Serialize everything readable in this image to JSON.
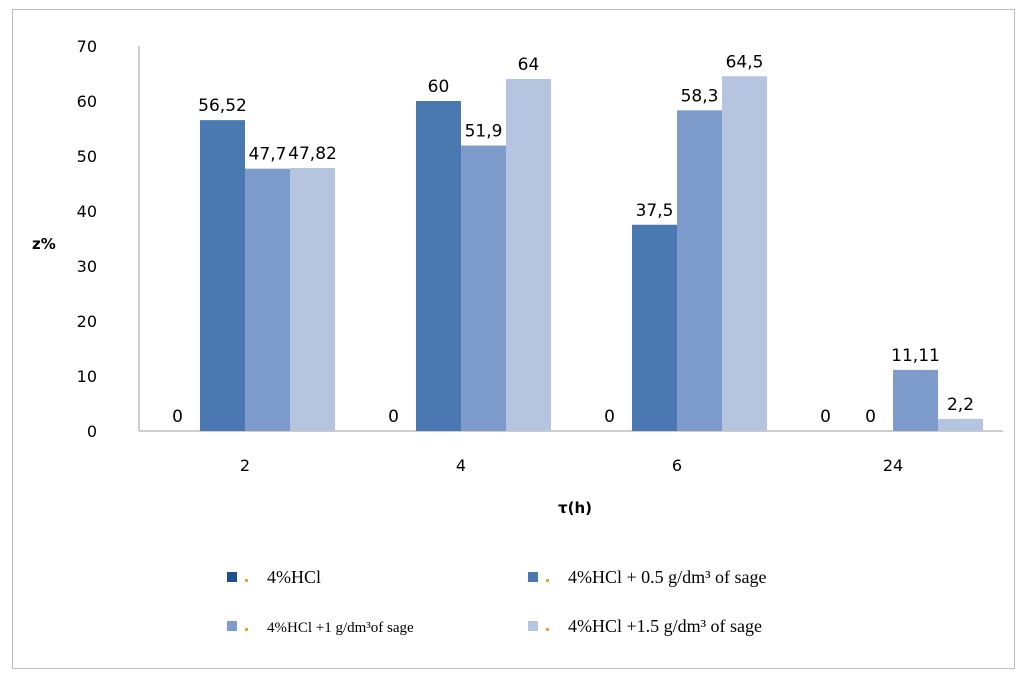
{
  "chart_data": {
    "type": "bar",
    "title": "",
    "xlabel": "τ(h)",
    "ylabel": "z%",
    "categories": [
      "2",
      "4",
      "6",
      "24"
    ],
    "ylim": [
      0,
      70
    ],
    "yticks": [
      0,
      10,
      20,
      30,
      40,
      50,
      60,
      70
    ],
    "grid": false,
    "legend_position": "bottom",
    "series": [
      {
        "name": "4%HCl",
        "values": [
          0,
          0,
          0,
          0
        ],
        "labels": [
          "0",
          "0",
          "0",
          "0"
        ],
        "color": "#1F4E8C"
      },
      {
        "name": "4%HCl + 0.5 g/dm³ of sage",
        "values": [
          56.52,
          60,
          37.5,
          0
        ],
        "labels": [
          "56,52",
          "60",
          "37,5",
          "0"
        ],
        "color": "#4A78B0"
      },
      {
        "name": "4%HCl +1 g/dm³of sage",
        "values": [
          47.7,
          51.9,
          58.3,
          11.11
        ],
        "labels": [
          "47,7",
          "51,9",
          "58,3",
          "11,11"
        ],
        "color": "#7E9CCB"
      },
      {
        "name": "4%HCl +1.5 g/dm³ of sage",
        "values": [
          47.82,
          64,
          64.5,
          2.2
        ],
        "labels": [
          "47,82",
          "64",
          "64,5",
          "2,2"
        ],
        "color": "#B5C5E0"
      }
    ]
  }
}
